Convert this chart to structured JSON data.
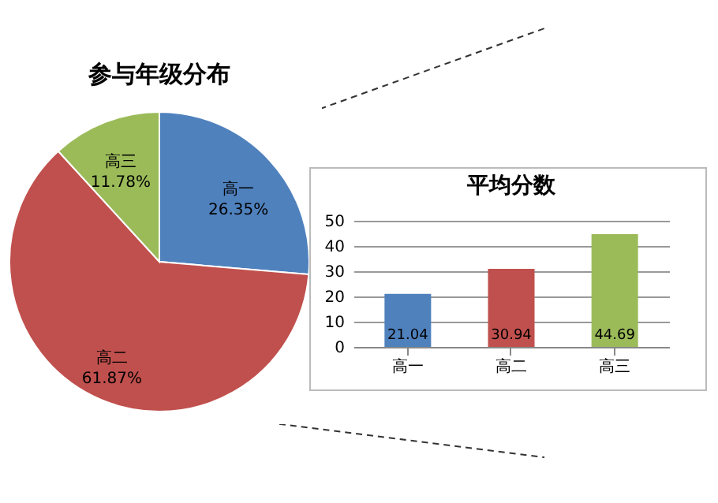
{
  "chart_data": [
    {
      "type": "pie",
      "title": "参与年级分布",
      "categories": [
        "高一",
        "高二",
        "高三"
      ],
      "values": [
        26.35,
        61.87,
        11.78
      ],
      "value_labels": [
        "26.35%",
        "61.87%",
        "11.78%"
      ],
      "colors": [
        "#4f81bd",
        "#c0504d",
        "#9bbb59"
      ]
    },
    {
      "type": "bar",
      "title": "平均分数",
      "categories": [
        "高一",
        "高二",
        "高三"
      ],
      "values": [
        21.04,
        30.94,
        44.69
      ],
      "colors": [
        "#4f81bd",
        "#c0504d",
        "#9bbb59"
      ],
      "ylim": [
        0,
        50
      ],
      "yticks": [
        0,
        10,
        20,
        30,
        40,
        50
      ],
      "grid": "y",
      "data_labels": true
    }
  ]
}
